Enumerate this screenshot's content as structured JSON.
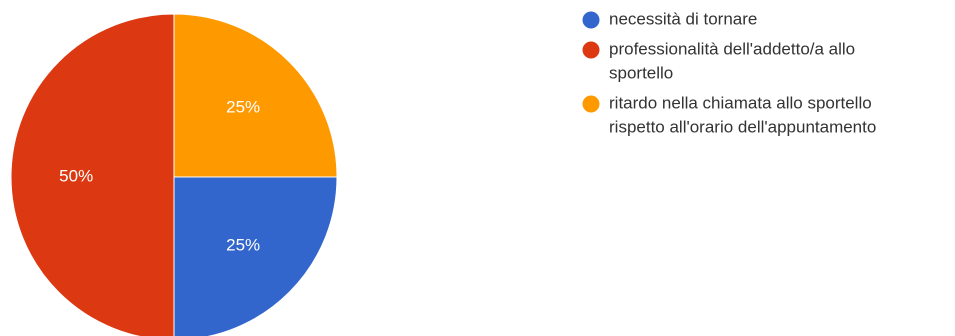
{
  "chart_data": {
    "type": "pie",
    "title": "",
    "slices": [
      {
        "label": "necessità di tornare",
        "value": 25,
        "display": "25%",
        "color": "#3366cc"
      },
      {
        "label": "professionalità dell'addetto/a allo sportello",
        "value": 50,
        "display": "50%",
        "color": "#dc3912"
      },
      {
        "label": "ritardo nella chiamata allo sportello rispetto all'orario dell'appuntamento",
        "value": 25,
        "display": "25%",
        "color": "#ff9900"
      }
    ],
    "legend": {
      "position": "right",
      "items": [
        {
          "lines": [
            "necessità di tornare"
          ],
          "color": "#3366cc"
        },
        {
          "lines": [
            "professionalità dell'addetto/a allo",
            "sportello"
          ],
          "color": "#dc3912"
        },
        {
          "lines": [
            "ritardo nella chiamata allo sportello",
            "rispetto all'orario dell'appuntamento"
          ],
          "color": "#ff9900"
        }
      ]
    }
  }
}
